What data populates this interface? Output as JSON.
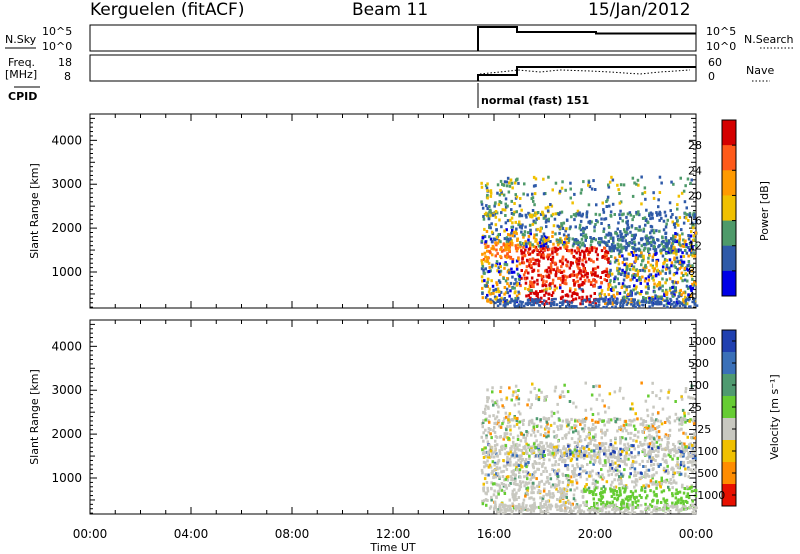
{
  "header": {
    "station": "Kerguelen (fitACF)",
    "beam": "Beam 11",
    "date": "15/Jan/2012"
  },
  "panels": {
    "nsky_label": "N.Sky",
    "nsky_ticks": [
      "10^5",
      "10^0"
    ],
    "nsearch_label": "N.Search",
    "nsearch_ticks": [
      "10^5",
      "10^0"
    ],
    "freq_label": "Freq.",
    "freq_unit": "[MHz]",
    "freq_ticks": [
      "18",
      "8"
    ],
    "nave_label": "Nave",
    "nave_ticks": [
      "60",
      "0"
    ],
    "cpid_label": "CPID",
    "cpid_text": "normal (fast) 151"
  },
  "chart_data": [
    {
      "type": "heatmap",
      "name": "power",
      "ylabel": "Slant Range [km]",
      "colorbar_label": "Power [dB]",
      "colorbar_ticks": [
        "28",
        "24",
        "20",
        "16",
        "12",
        "8",
        "4"
      ],
      "colorbar_colors": [
        "#d40000",
        "#ff5a1a",
        "#ff9a00",
        "#f0c000",
        "#4e9a6a",
        "#2f5aa8",
        "#0000e6"
      ],
      "x_tick_labels": [
        "00:00",
        "04:00",
        "08:00",
        "12:00",
        "16:00",
        "20:00",
        "00:00"
      ],
      "xlim_hours": [
        0,
        24
      ],
      "ylim_km": [
        180,
        4600
      ],
      "y_tick_labels": [
        "1000",
        "2000",
        "3000",
        "4000"
      ],
      "data_start_hour": 15.45
    },
    {
      "type": "heatmap",
      "name": "velocity",
      "ylabel": "Slant Range [km]",
      "xlabel": "Time UT",
      "colorbar_label": "Velocity [m s⁻¹]",
      "colorbar_ticks": [
        "1000",
        "500",
        "100",
        "25",
        "−25",
        "−100",
        "−500",
        "−1000"
      ],
      "colorbar_colors": [
        "#2040b0",
        "#3a70b8",
        "#4f9a70",
        "#66cc33",
        "#c8c8c0",
        "#f0c000",
        "#ff8c00",
        "#e81000"
      ],
      "x_tick_labels": [
        "00:00",
        "04:00",
        "08:00",
        "12:00",
        "16:00",
        "20:00",
        "00:00"
      ],
      "xlim_hours": [
        0,
        24
      ],
      "ylim_km": [
        180,
        4600
      ],
      "y_tick_labels": [
        "1000",
        "2000",
        "3000",
        "4000"
      ],
      "data_start_hour": 15.45
    }
  ]
}
